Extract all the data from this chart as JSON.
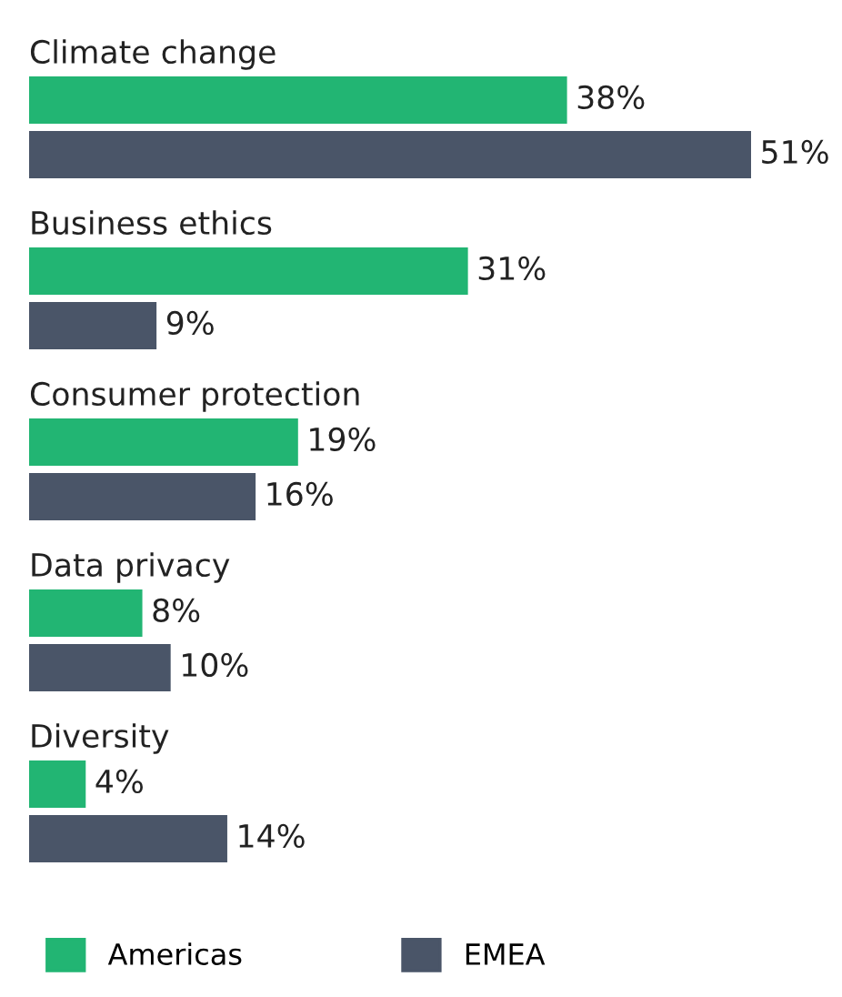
{
  "chart_data": {
    "type": "bar",
    "orientation": "horizontal",
    "categories": [
      "Climate change",
      "Business ethics",
      "Consumer protection",
      "Data privacy",
      "Diversity"
    ],
    "series": [
      {
        "name": "Americas",
        "color": "#22b573",
        "values": [
          38,
          31,
          19,
          8,
          4
        ],
        "value_labels": [
          "38%",
          "31%",
          "19%",
          "8%",
          "4%"
        ]
      },
      {
        "name": "EMEA",
        "color": "#4a5568",
        "values": [
          51,
          9,
          16,
          10,
          14
        ],
        "value_labels": [
          "51%",
          "9%",
          "16%",
          "10%",
          "14%"
        ]
      }
    ],
    "legend": "bottom"
  }
}
